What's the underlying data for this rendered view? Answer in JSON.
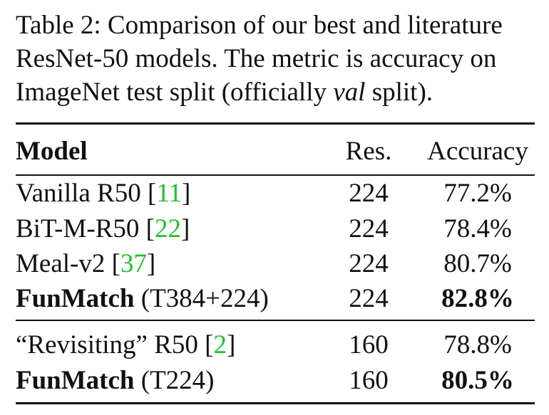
{
  "caption": {
    "line1": "Table 2: Comparison of our best and literature",
    "line2": "ResNet-50 models. The metric is accuracy on",
    "line3_pre": "ImageNet test split (officially ",
    "line3_em": "val",
    "line3_post": " split)."
  },
  "table": {
    "headers": {
      "model": "Model",
      "res": "Res.",
      "accuracy": "Accuracy"
    },
    "rows": [
      {
        "model": "Vanilla R50 [",
        "cite": "11",
        "close": "]",
        "res": "224",
        "accuracy": "77.2%"
      },
      {
        "model": "BiT-M-R50 [",
        "cite": "22",
        "close": "]",
        "res": "224",
        "accuracy": "78.4%"
      },
      {
        "model": "Meal-v2 [",
        "cite": "37",
        "close": "]",
        "res": "224",
        "accuracy": "80.7%"
      },
      {
        "model_bold": "FunMatch",
        "model_rest": " (T384+224)",
        "res": "224",
        "accuracy": "82.8%"
      },
      {
        "model": "“Revisiting” R50 [",
        "cite": "2",
        "close": "]",
        "res": "160",
        "accuracy": "78.8%"
      },
      {
        "model_bold": "FunMatch",
        "model_rest": " (T224)",
        "res": "160",
        "accuracy": "80.5%"
      }
    ]
  },
  "colors": {
    "citation": "#22c02a",
    "text": "#111111"
  }
}
